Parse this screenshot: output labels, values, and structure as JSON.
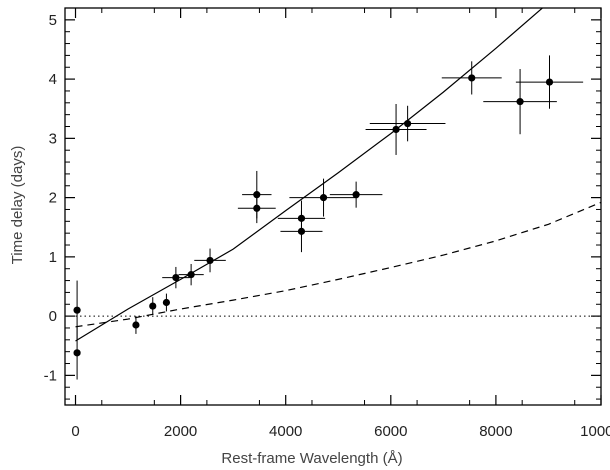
{
  "chart_data": {
    "type": "scatter",
    "xlabel": "Rest-frame Wavelength (Å)",
    "ylabel": "Time delay (days)",
    "xlim": [
      -200,
      10000
    ],
    "ylim": [
      -1.5,
      5.2
    ],
    "x_ticks": [
      0,
      2000,
      4000,
      6000,
      8000,
      10000
    ],
    "x_tick_labels": [
      "0",
      "2000",
      "4000",
      "6000",
      "8000",
      "10000"
    ],
    "y_ticks": [
      -1,
      0,
      1,
      2,
      3,
      4,
      5
    ],
    "y_tick_labels": [
      "-1",
      "0",
      "1",
      "2",
      "3",
      "4",
      "5"
    ],
    "grid": false,
    "series": [
      {
        "style": "points-with-errorbars",
        "points": [
          {
            "x": 30,
            "y": 0.1,
            "xerr": 0,
            "yerr": 0.5
          },
          {
            "x": 30,
            "y": -0.62,
            "xerr": 0,
            "yerr": 0.45
          },
          {
            "x": 1150,
            "y": -0.15,
            "xerr": 0,
            "yerr": 0.15
          },
          {
            "x": 1470,
            "y": 0.17,
            "xerr": 0,
            "yerr": 0.15
          },
          {
            "x": 1730,
            "y": 0.23,
            "xerr": 0,
            "yerr": 0.15
          },
          {
            "x": 1910,
            "y": 0.65,
            "xerr": 260,
            "yerr": 0.18
          },
          {
            "x": 2200,
            "y": 0.7,
            "xerr": 240,
            "yerr": 0.18
          },
          {
            "x": 2560,
            "y": 0.94,
            "xerr": 300,
            "yerr": 0.2
          },
          {
            "x": 3450,
            "y": 2.05,
            "xerr": 280,
            "yerr": 0.4
          },
          {
            "x": 3450,
            "y": 1.82,
            "xerr": 360,
            "yerr": 0.25
          },
          {
            "x": 4300,
            "y": 1.65,
            "xerr": 450,
            "yerr": 0.3
          },
          {
            "x": 4300,
            "y": 1.43,
            "xerr": 400,
            "yerr": 0.35
          },
          {
            "x": 4720,
            "y": 2.0,
            "xerr": 650,
            "yerr": 0.32
          },
          {
            "x": 5340,
            "y": 2.05,
            "xerr": 500,
            "yerr": 0.22
          },
          {
            "x": 6100,
            "y": 3.15,
            "xerr": 580,
            "yerr": 0.43
          },
          {
            "x": 6320,
            "y": 3.25,
            "xerr": 720,
            "yerr": 0.3
          },
          {
            "x": 7540,
            "y": 4.02,
            "xerr": 570,
            "yerr": 0.28
          },
          {
            "x": 8460,
            "y": 3.62,
            "xerr": 700,
            "yerr": 0.55
          },
          {
            "x": 9020,
            "y": 3.95,
            "xerr": 640,
            "yerr": 0.45
          }
        ]
      },
      {
        "style": "solid-line",
        "x": [
          0,
          500,
          1000,
          2000,
          3000,
          4000,
          5000,
          6000,
          7000,
          8000,
          8950
        ],
        "y": [
          -0.42,
          -0.15,
          0.12,
          0.62,
          1.13,
          1.78,
          2.42,
          3.08,
          3.78,
          4.52,
          5.25
        ]
      },
      {
        "style": "dashed-line",
        "x": [
          0,
          1000,
          2000,
          3000,
          4000,
          5000,
          6000,
          7000,
          8000,
          9000,
          10000
        ],
        "y": [
          -0.18,
          -0.05,
          0.12,
          0.27,
          0.43,
          0.62,
          0.82,
          1.03,
          1.27,
          1.55,
          1.92
        ]
      },
      {
        "style": "dotted-line",
        "x": [
          0,
          10000
        ],
        "y": [
          0,
          0
        ]
      }
    ]
  }
}
